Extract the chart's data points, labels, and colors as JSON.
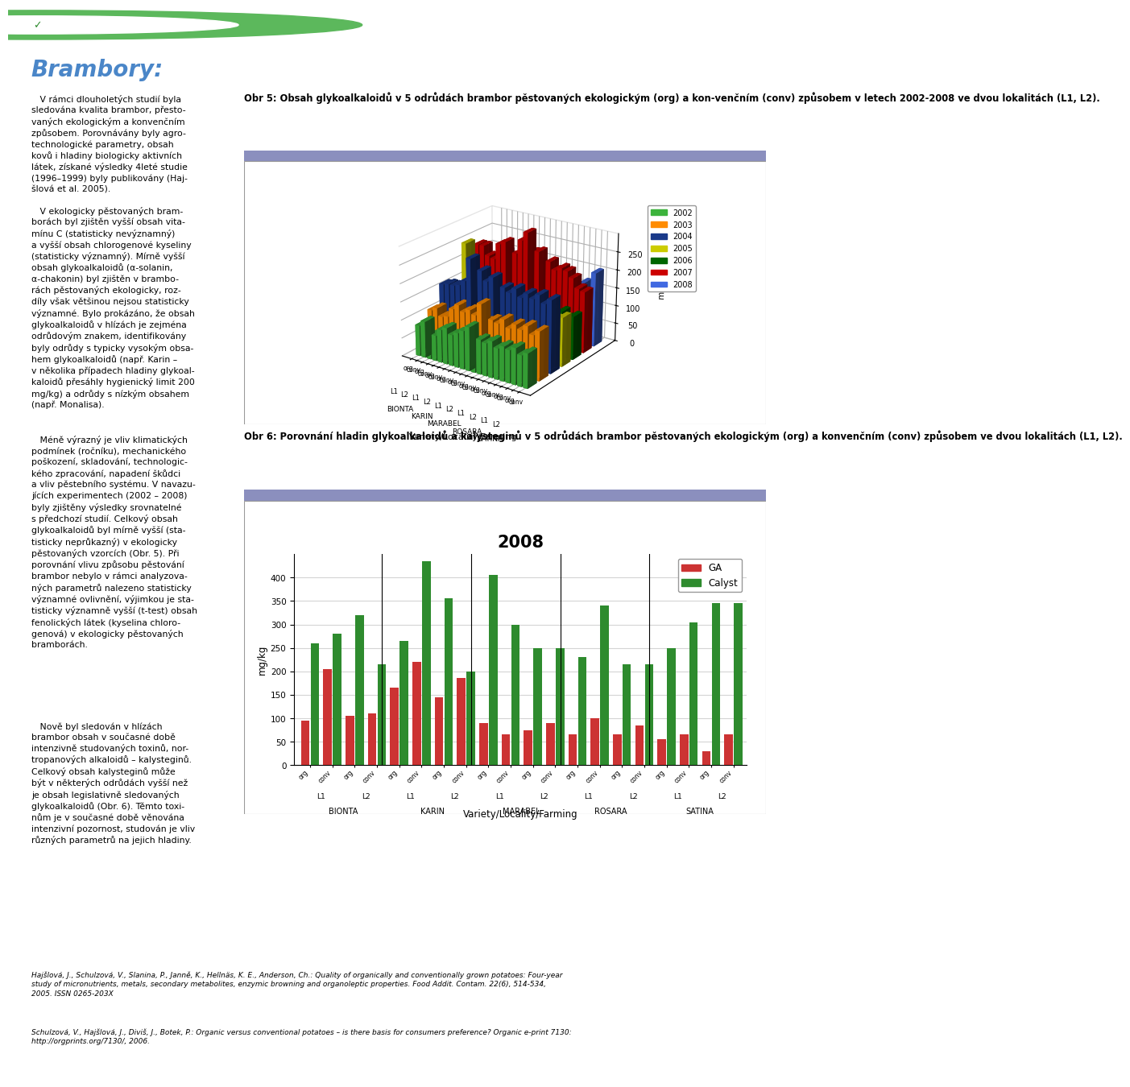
{
  "page_bg": "#ffffff",
  "header_bar_color": "#8b8fbe",
  "stripe_color": "#7ab648",
  "title_color": "#4a86c8",
  "title_text": "Brambory:",
  "chart1_title": "Obr 5: Obsah glykoalkaloidů v 5 odrůdách brambor pěstovaných ekologickým (org) a kon-venčním (conv) způsobem v letech 2002-2008 ve dvou lokalitách (L1, L2).",
  "chart2_title": "Obr 6: Porovnání hladin glykoalkaloidů a kalysteginů v 5 odrůdách brambor pěstovaných ekologickým (org) a konvenčním (conv) způsobem ve dvou lokalitách (L1, L2).",
  "varieties": [
    "BIONTA",
    "KARIN",
    "MARABEL",
    "ROSARA",
    "SATINA"
  ],
  "localities": [
    "L1",
    "L2"
  ],
  "farming": [
    "org",
    "conv"
  ],
  "years": [
    2002,
    2003,
    2004,
    2005,
    2006,
    2007,
    2008
  ],
  "year_colors": [
    "#3cb33c",
    "#ff8c00",
    "#1a3a8a",
    "#cccc00",
    "#006600",
    "#cc0000",
    "#4169e1"
  ],
  "chart2_colors": [
    "#cc3333",
    "#2e8b2e"
  ],
  "chart1_data": {
    "BIONTA_L1_org": [
      85,
      110,
      165,
      105,
      120,
      230,
      160
    ],
    "BIONTA_L1_conv": [
      100,
      120,
      170,
      125,
      130,
      230,
      175
    ],
    "BIONTA_L2_org": [
      65,
      100,
      170,
      270,
      105,
      205,
      130
    ],
    "BIONTA_L2_conv": [
      70,
      105,
      175,
      130,
      120,
      200,
      205
    ],
    "KARIN_L1_org": [
      90,
      130,
      190,
      130,
      110,
      245,
      140
    ],
    "KARIN_L1_conv": [
      100,
      145,
      255,
      135,
      125,
      255,
      160
    ],
    "KARIN_L2_org": [
      85,
      130,
      185,
      125,
      115,
      220,
      140
    ],
    "KARIN_L2_conv": [
      95,
      140,
      230,
      130,
      130,
      230,
      155
    ],
    "MARABEL_L1_org": [
      105,
      130,
      205,
      140,
      115,
      270,
      155
    ],
    "MARABEL_L1_conv": [
      120,
      165,
      220,
      155,
      130,
      295,
      195
    ],
    "MARABEL_L2_org": [
      85,
      120,
      185,
      125,
      110,
      245,
      145
    ],
    "MARABEL_L2_conv": [
      95,
      130,
      200,
      130,
      120,
      250,
      155
    ],
    "ROSARA_L1_org": [
      90,
      125,
      190,
      130,
      110,
      215,
      140
    ],
    "ROSARA_L1_conv": [
      100,
      140,
      205,
      145,
      125,
      230,
      165
    ],
    "ROSARA_L2_org": [
      85,
      120,
      185,
      125,
      110,
      210,
      140
    ],
    "ROSARA_L2_conv": [
      95,
      135,
      200,
      135,
      120,
      220,
      155
    ],
    "SATINA_L1_org": [
      90,
      125,
      190,
      130,
      110,
      215,
      140
    ],
    "SATINA_L1_conv": [
      100,
      140,
      205,
      145,
      125,
      200,
      170
    ],
    "SATINA_L2_org": [
      85,
      120,
      185,
      125,
      110,
      175,
      135
    ],
    "SATINA_L2_conv": [
      95,
      135,
      200,
      135,
      120,
      170,
      205
    ]
  },
  "chart2_data": {
    "BIONTA_L1_org_GA": 95,
    "BIONTA_L1_org_Calyst": 260,
    "BIONTA_L1_conv_GA": 205,
    "BIONTA_L1_conv_Calyst": 280,
    "BIONTA_L2_org_GA": 105,
    "BIONTA_L2_org_Calyst": 320,
    "BIONTA_L2_conv_GA": 110,
    "BIONTA_L2_conv_Calyst": 215,
    "KARIN_L1_org_GA": 165,
    "KARIN_L1_org_Calyst": 265,
    "KARIN_L1_conv_GA": 220,
    "KARIN_L1_conv_Calyst": 435,
    "KARIN_L2_org_GA": 145,
    "KARIN_L2_org_Calyst": 355,
    "KARIN_L2_conv_GA": 185,
    "KARIN_L2_conv_Calyst": 200,
    "MARABEL_L1_org_GA": 90,
    "MARABEL_L1_org_Calyst": 405,
    "MARABEL_L1_conv_GA": 65,
    "MARABEL_L1_conv_Calyst": 300,
    "MARABEL_L2_org_GA": 75,
    "MARABEL_L2_org_Calyst": 250,
    "MARABEL_L2_conv_GA": 90,
    "MARABEL_L2_conv_Calyst": 250,
    "ROSARA_L1_org_GA": 65,
    "ROSARA_L1_org_Calyst": 230,
    "ROSARA_L1_conv_GA": 100,
    "ROSARA_L1_conv_Calyst": 340,
    "ROSARA_L2_org_GA": 65,
    "ROSARA_L2_org_Calyst": 215,
    "ROSARA_L2_conv_GA": 85,
    "ROSARA_L2_conv_Calyst": 215,
    "SATINA_L1_org_GA": 55,
    "SATINA_L1_org_Calyst": 250,
    "SATINA_L1_conv_GA": 65,
    "SATINA_L1_conv_Calyst": 305,
    "SATINA_L2_org_GA": 30,
    "SATINA_L2_org_Calyst": 345,
    "SATINA_L2_conv_GA": 65,
    "SATINA_L2_conv_Calyst": 345
  },
  "footer_text1": "Hajšlová, J., Schulzová, V., Slanina, P., Janně, K., Hellnäs, K. E., Anderson, Ch.: Quality of organically and conventionally grown potatoes: Four-year\nstudy of micronutrients, metals, secondary metabolites, enzymic browning and organoleptic properties. Food Addit. Contam. 22(6), 514-534,\n2005. ISSN 0265-203X",
  "footer_text2": "Schulzová, V., Hajšlová, J., Diviš, J., Botek, P.: Organic versus conventional potatoes – is there basis for consumers preference? Organic e-print 7130:\nhttp://orgprints.org/7130/, 2006."
}
